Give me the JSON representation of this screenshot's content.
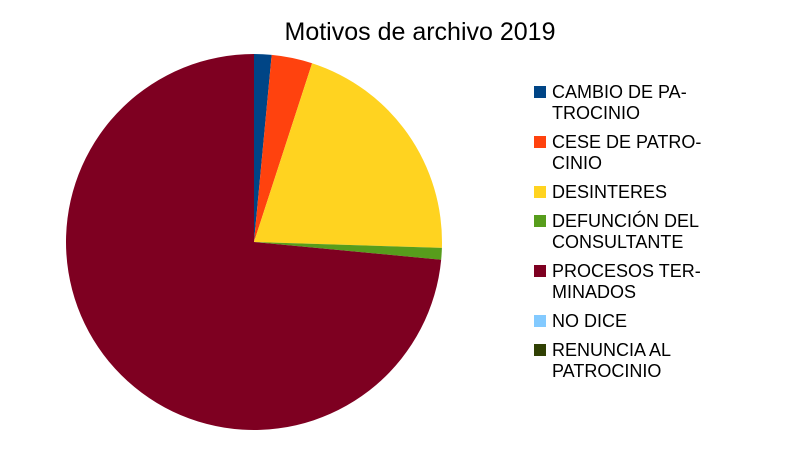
{
  "chart_data": {
    "type": "pie",
    "title": "Motivos de archivo 2019",
    "legend_position": "right",
    "slices": [
      {
        "label": "CAMBIO DE PA-\nTROCINIO",
        "value": 1.5,
        "color": "#004586"
      },
      {
        "label": "CESE DE PATRO-\nCINIO",
        "value": 3.5,
        "color": "#ff420e"
      },
      {
        "label": "DESINTERES",
        "value": 20.5,
        "color": "#ffd320"
      },
      {
        "label": "DEFUNCIÓN DEL\nCONSULTANTE",
        "value": 1.0,
        "color": "#579d1c"
      },
      {
        "label": "PROCESOS TER-\nMINADOS",
        "value": 73.5,
        "color": "#7e0021"
      },
      {
        "label": "NO DICE",
        "value": 0,
        "color": "#83caff"
      },
      {
        "label": "RENUNCIA AL\nPATROCINIO",
        "value": 0,
        "color": "#314004"
      }
    ]
  }
}
